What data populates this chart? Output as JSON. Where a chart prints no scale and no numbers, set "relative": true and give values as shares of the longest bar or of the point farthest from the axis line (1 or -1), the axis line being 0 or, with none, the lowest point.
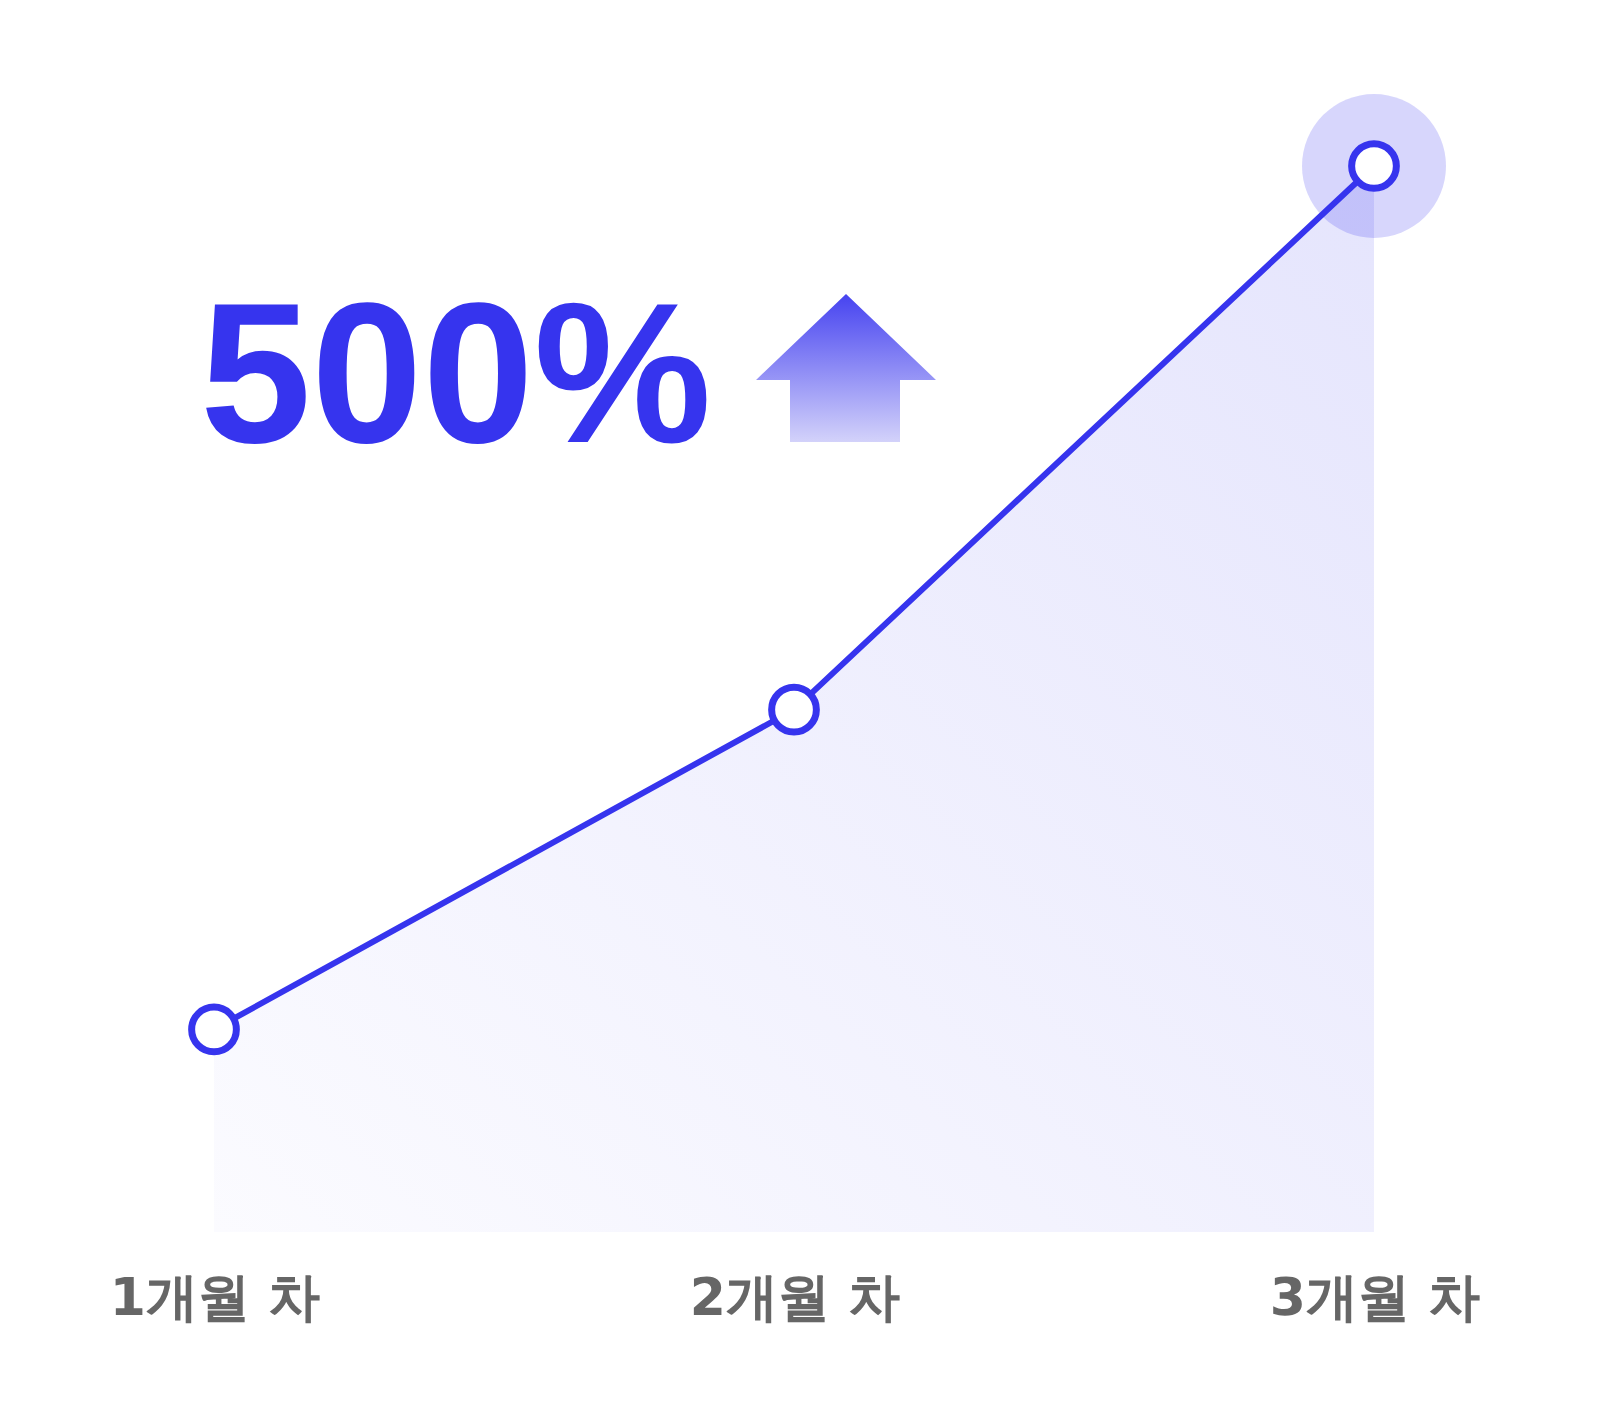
{
  "chart_data": {
    "type": "area",
    "relative": true,
    "categories": [
      "1개월 차",
      "2개월 차",
      "3개월 차"
    ],
    "series": [
      {
        "color": "#3634ee",
        "values": [
          0.19,
          0.49,
          1
        ]
      }
    ],
    "marker": "circle",
    "line_style": "solid",
    "annotations": [
      "500%"
    ]
  }
}
